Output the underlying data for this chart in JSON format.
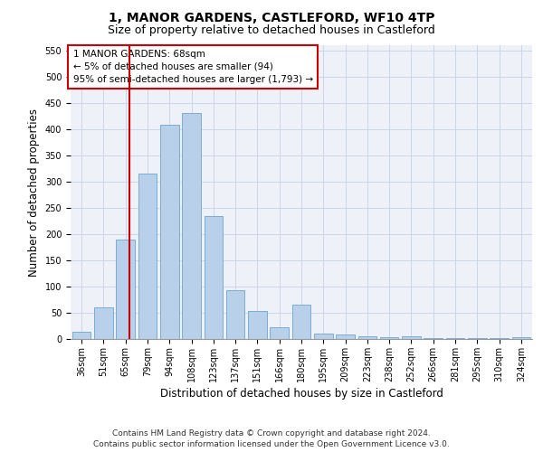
{
  "title": "1, MANOR GARDENS, CASTLEFORD, WF10 4TP",
  "subtitle": "Size of property relative to detached houses in Castleford",
  "xlabel": "Distribution of detached houses by size in Castleford",
  "ylabel": "Number of detached properties",
  "categories": [
    "36sqm",
    "51sqm",
    "65sqm",
    "79sqm",
    "94sqm",
    "108sqm",
    "123sqm",
    "137sqm",
    "151sqm",
    "166sqm",
    "180sqm",
    "195sqm",
    "209sqm",
    "223sqm",
    "238sqm",
    "252sqm",
    "266sqm",
    "281sqm",
    "295sqm",
    "310sqm",
    "324sqm"
  ],
  "values": [
    13,
    60,
    190,
    315,
    408,
    430,
    234,
    93,
    53,
    22,
    65,
    10,
    8,
    5,
    4,
    5,
    1,
    1,
    1,
    1,
    4
  ],
  "bar_color": "#b8d0ea",
  "bar_edge_color": "#7aadd4",
  "vline_x": 2.18,
  "vline_color": "#cc0000",
  "annotation_lines": [
    "1 MANOR GARDENS: 68sqm",
    "← 5% of detached houses are smaller (94)",
    "95% of semi-detached houses are larger (1,793) →"
  ],
  "annotation_box_color": "#ffffff",
  "annotation_box_edge_color": "#cc0000",
  "ylim": [
    0,
    560
  ],
  "yticks": [
    0,
    50,
    100,
    150,
    200,
    250,
    300,
    350,
    400,
    450,
    500,
    550
  ],
  "grid_color": "#ccd6e8",
  "bg_color": "#eef2f8",
  "footer_line1": "Contains HM Land Registry data © Crown copyright and database right 2024.",
  "footer_line2": "Contains public sector information licensed under the Open Government Licence v3.0.",
  "title_fontsize": 10,
  "subtitle_fontsize": 9,
  "axis_label_fontsize": 8.5,
  "tick_fontsize": 7,
  "annotation_fontsize": 7.5,
  "footer_fontsize": 6.5
}
